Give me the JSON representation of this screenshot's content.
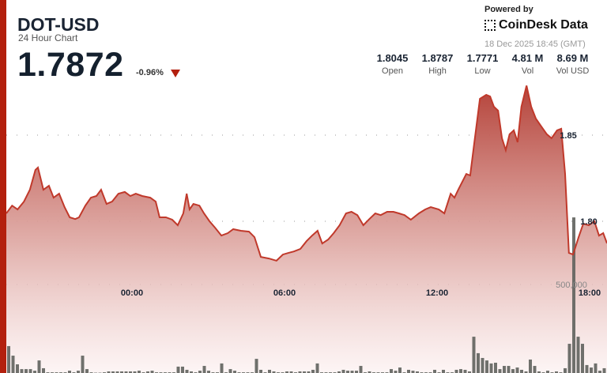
{
  "header": {
    "symbol": "DOT-USD",
    "subtitle": "24 Hour Chart",
    "price": "1.7872",
    "change": "-0.96%",
    "change_direction": "down",
    "powered_by": "Powered by",
    "brand": "CoinDesk Data",
    "timestamp": "18 Dec 2025 18:45 (GMT)"
  },
  "stats": [
    {
      "value": "1.8045",
      "label": "Open"
    },
    {
      "value": "1.8787",
      "label": "High"
    },
    {
      "value": "1.7771",
      "label": "Low"
    },
    {
      "value": "4.81 M",
      "label": "Vol"
    },
    {
      "value": "8.69 M",
      "label": "Vol USD"
    }
  ],
  "colors": {
    "accent": "#b3200e",
    "line": "#c0392b",
    "volume": "#5f625d"
  },
  "chart_data": {
    "type": "area",
    "x_ticks": [
      "00:00",
      "06:00",
      "12:00",
      "18:00"
    ],
    "y_ticks": [
      "1.85",
      "1.80"
    ],
    "volume_tick": "500,000",
    "grid": "dotted horizontal",
    "price_series": [
      [
        "17 19:03",
        1.8046
      ],
      [
        "17 19:17",
        1.8091
      ],
      [
        "17 19:30",
        1.8069
      ],
      [
        "17 19:45",
        1.8114
      ],
      [
        "17 19:59",
        1.8183
      ],
      [
        "17 20:12",
        1.8298
      ],
      [
        "17 20:18",
        1.8312
      ],
      [
        "17 20:31",
        1.8183
      ],
      [
        "17 20:44",
        1.8206
      ],
      [
        "17 20:55",
        1.8137
      ],
      [
        "17 21:08",
        1.816
      ],
      [
        "17 21:21",
        1.8082
      ],
      [
        "17 21:33",
        1.8023
      ],
      [
        "17 21:46",
        1.8013
      ],
      [
        "17 21:55",
        1.8023
      ],
      [
        "17 22:10",
        1.8091
      ],
      [
        "17 22:23",
        1.8137
      ],
      [
        "17 22:36",
        1.8147
      ],
      [
        "17 22:47",
        1.8183
      ],
      [
        "17 23:00",
        1.8101
      ],
      [
        "17 23:13",
        1.8114
      ],
      [
        "17 23:28",
        1.816
      ],
      [
        "17 23:43",
        1.817
      ],
      [
        "17 23:56",
        1.8147
      ],
      [
        "18 00:09",
        1.816
      ],
      [
        "18 00:24",
        1.8147
      ],
      [
        "18 00:43",
        1.8137
      ],
      [
        "18 00:56",
        1.8114
      ],
      [
        "18 01:05",
        1.8023
      ],
      [
        "18 01:20",
        1.8023
      ],
      [
        "18 01:35",
        1.8009
      ],
      [
        "18 01:48",
        1.7977
      ],
      [
        "18 02:01",
        1.8046
      ],
      [
        "18 02:09",
        1.816
      ],
      [
        "18 02:16",
        1.8069
      ],
      [
        "18 02:25",
        1.8101
      ],
      [
        "18 02:39",
        1.8091
      ],
      [
        "18 02:50",
        1.8046
      ],
      [
        "18 03:03",
        1.8
      ],
      [
        "18 03:16",
        1.7963
      ],
      [
        "18 03:31",
        1.7917
      ],
      [
        "18 03:46",
        1.7931
      ],
      [
        "18 03:59",
        1.7954
      ],
      [
        "18 04:17",
        1.7945
      ],
      [
        "18 04:36",
        1.794
      ],
      [
        "18 04:49",
        1.7908
      ],
      [
        "18 05:04",
        1.7793
      ],
      [
        "18 05:23",
        1.7784
      ],
      [
        "18 05:41",
        1.7771
      ],
      [
        "18 05:56",
        1.7807
      ],
      [
        "18 06:09",
        1.7816
      ],
      [
        "18 06:22",
        1.7825
      ],
      [
        "18 06:37",
        1.7839
      ],
      [
        "18 06:52",
        1.7885
      ],
      [
        "18 07:05",
        1.7917
      ],
      [
        "18 07:18",
        1.7945
      ],
      [
        "18 07:29",
        1.7871
      ],
      [
        "18 07:43",
        1.7894
      ],
      [
        "18 07:56",
        1.7931
      ],
      [
        "18 08:10",
        1.7977
      ],
      [
        "18 08:25",
        1.8046
      ],
      [
        "18 08:38",
        1.8055
      ],
      [
        "18 08:52",
        1.8036
      ],
      [
        "18 09:06",
        1.7977
      ],
      [
        "18 09:20",
        1.8013
      ],
      [
        "18 09:34",
        1.8046
      ],
      [
        "18 09:47",
        1.8036
      ],
      [
        "18 10:02",
        1.8055
      ],
      [
        "18 10:17",
        1.8055
      ],
      [
        "18 10:30",
        1.8046
      ],
      [
        "18 10:43",
        1.8036
      ],
      [
        "18 10:58",
        1.8009
      ],
      [
        "18 11:17",
        1.8046
      ],
      [
        "18 11:32",
        1.8069
      ],
      [
        "18 11:45",
        1.8082
      ],
      [
        "18 12:04",
        1.8069
      ],
      [
        "18 12:17",
        1.8046
      ],
      [
        "18 12:32",
        1.816
      ],
      [
        "18 12:41",
        1.8137
      ],
      [
        "18 12:50",
        1.8183
      ],
      [
        "18 13:09",
        1.8275
      ],
      [
        "18 13:18",
        1.8266
      ],
      [
        "18 13:28",
        1.8459
      ],
      [
        "18 13:41",
        1.8711
      ],
      [
        "18 13:56",
        1.8734
      ],
      [
        "18 14:05",
        1.8725
      ],
      [
        "18 14:14",
        1.8665
      ],
      [
        "18 14:24",
        1.8642
      ],
      [
        "18 14:33",
        1.8482
      ],
      [
        "18 14:42",
        1.8413
      ],
      [
        "18 14:51",
        1.8505
      ],
      [
        "18 15:01",
        1.8528
      ],
      [
        "18 15:10",
        1.8459
      ],
      [
        "18 15:19",
        1.8665
      ],
      [
        "18 15:31",
        1.8787
      ],
      [
        "18 15:42",
        1.8665
      ],
      [
        "18 15:53",
        1.8596
      ],
      [
        "18 16:06",
        1.855
      ],
      [
        "18 16:19",
        1.8505
      ],
      [
        "18 16:30",
        1.8482
      ],
      [
        "18 16:43",
        1.8528
      ],
      [
        "18 16:53",
        1.8537
      ],
      [
        "18 17:02",
        1.8275
      ],
      [
        "18 17:11",
        1.7816
      ],
      [
        "18 17:21",
        1.7807
      ],
      [
        "18 17:34",
        1.7908
      ],
      [
        "18 17:45",
        1.7986
      ],
      [
        "18 17:58",
        1.7977
      ],
      [
        "18 18:11",
        1.8
      ],
      [
        "18 18:22",
        1.7917
      ],
      [
        "18 18:32",
        1.7931
      ],
      [
        "18 18:41",
        1.7872
      ]
    ],
    "volume": [
      152000,
      98000,
      49000,
      22000,
      22000,
      22000,
      13000,
      71000,
      27000,
      4000,
      4000,
      4000,
      4000,
      4000,
      13000,
      4000,
      13000,
      98000,
      22000,
      4000,
      2000,
      2000,
      4000,
      9000,
      9000,
      9000,
      9000,
      9000,
      9000,
      9000,
      13000,
      4000,
      9000,
      13000,
      4000,
      4000,
      4000,
      4000,
      4000,
      36000,
      36000,
      18000,
      9000,
      4000,
      13000,
      40000,
      13000,
      4000,
      4000,
      54000,
      4000,
      22000,
      13000,
      4000,
      4000,
      4000,
      4000,
      80000,
      18000,
      4000,
      18000,
      9000,
      4000,
      4000,
      9000,
      9000,
      4000,
      9000,
      9000,
      9000,
      18000,
      54000,
      4000,
      4000,
      4000,
      4000,
      9000,
      18000,
      13000,
      13000,
      13000,
      40000,
      4000,
      9000,
      4000,
      4000,
      4000,
      4000,
      22000,
      13000,
      31000,
      4000,
      18000,
      13000,
      9000,
      4000,
      4000,
      4000,
      18000,
      4000,
      18000,
      4000,
      4000,
      18000,
      22000,
      18000,
      9000,
      205000,
      112000,
      85000,
      71000,
      54000,
      58000,
      22000,
      40000,
      40000,
      22000,
      31000,
      18000,
      9000,
      76000,
      40000,
      9000,
      4000,
      13000,
      4000,
      9000,
      4000,
      27000,
      165000,
      879000,
      205000,
      165000,
      45000,
      31000,
      54000,
      13000,
      27000,
      9000
    ]
  }
}
